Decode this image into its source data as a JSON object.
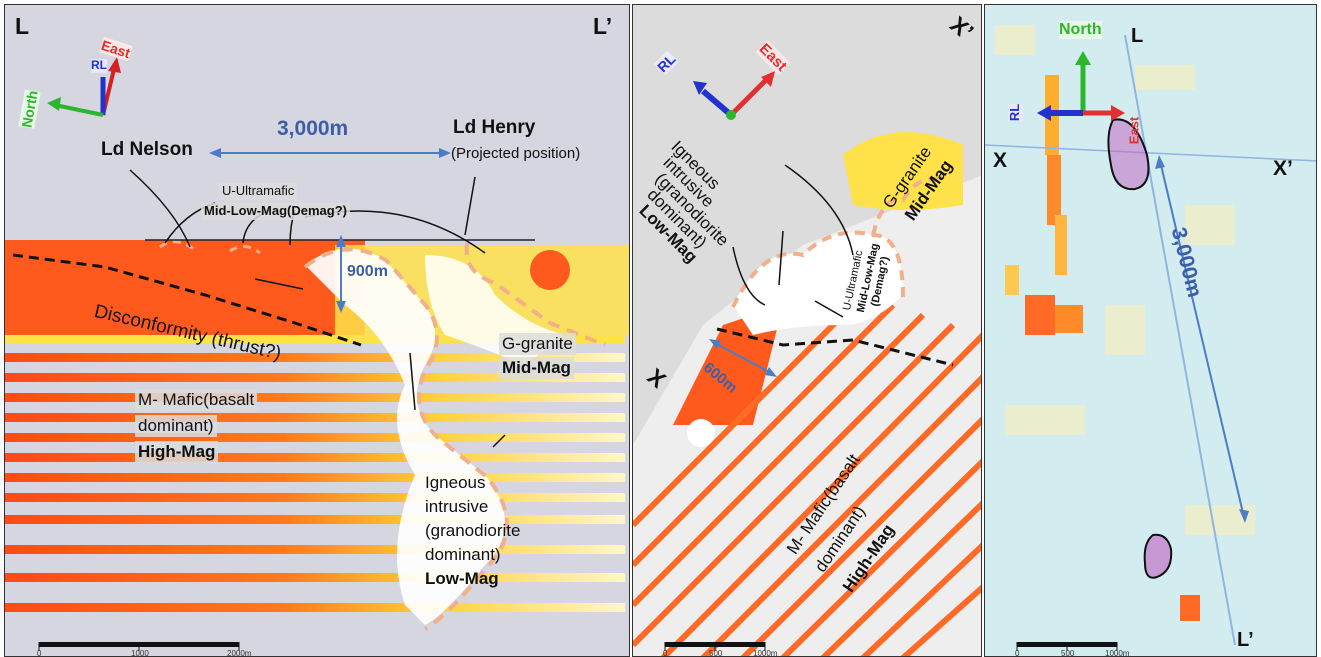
{
  "panels": {
    "left": {
      "corner_left": "L",
      "corner_right": "L’",
      "axes": {
        "east": "East",
        "rl": "RL",
        "north": "North"
      },
      "distance_label": "3,000m",
      "depth_label": "900m",
      "ld_nelson": "Ld Nelson",
      "ld_henry": "Ld Henry",
      "ld_henry_note": "(Projected position)",
      "ultramafic_line1": "U-Ultramafic",
      "ultramafic_line2": "Mid-Low-Mag(Demag?)",
      "disconformity": "Disconformity (thrust?)",
      "granite_line1": "G-granite",
      "granite_line2": "Mid-Mag",
      "mafic_line1": "M- Mafic(basalt",
      "mafic_line2": "dominant)",
      "mafic_line3": "High-Mag",
      "igneous_line1": "Igneous",
      "igneous_line2": "intrusive",
      "igneous_line3": "(granodiorite",
      "igneous_line4": "dominant)",
      "igneous_line5": "Low-Mag",
      "scale_ticks": [
        "0",
        "1000",
        "2000m"
      ]
    },
    "middle": {
      "corner_right": "X’",
      "corner_left": "X",
      "axes": {
        "rl": "RL",
        "east": "East"
      },
      "igneous_line1": "Igneous",
      "igneous_line2": "intrusive",
      "igneous_line3": "(granodiorite",
      "igneous_line4": "dominant)",
      "igneous_line5": "Low-Mag",
      "granite_line1": "G-granite",
      "granite_line2": "Mid-Mag",
      "ultramafic_line1": "U-Ultramafic",
      "ultramafic_line2": "Mid-Low-Mag",
      "ultramafic_line3": "(Demag?)",
      "distance_label": "600m",
      "mafic_line1": "M- Mafic(basalt",
      "mafic_line2": "dominant)",
      "mafic_line3": "High-Mag",
      "scale_ticks": [
        "0",
        "500",
        "1000m"
      ]
    },
    "right": {
      "axes": {
        "north": "North",
        "rl": "RL",
        "east": "East"
      },
      "corner_top": "L",
      "corner_bottom": "L’",
      "section_left": "X",
      "section_right": "X’",
      "distance_label": "3,000m",
      "scale_ticks": [
        "0",
        "500",
        "1000m"
      ]
    }
  },
  "colors": {
    "high_mag": "#ff5a1e",
    "mid_mag": "#ffe24a",
    "low_mag": "#ffffff",
    "background_grey": "#d6d6e0",
    "contact_dash": "#f2b08a",
    "arrow_blue": "#4a7cc7"
  }
}
